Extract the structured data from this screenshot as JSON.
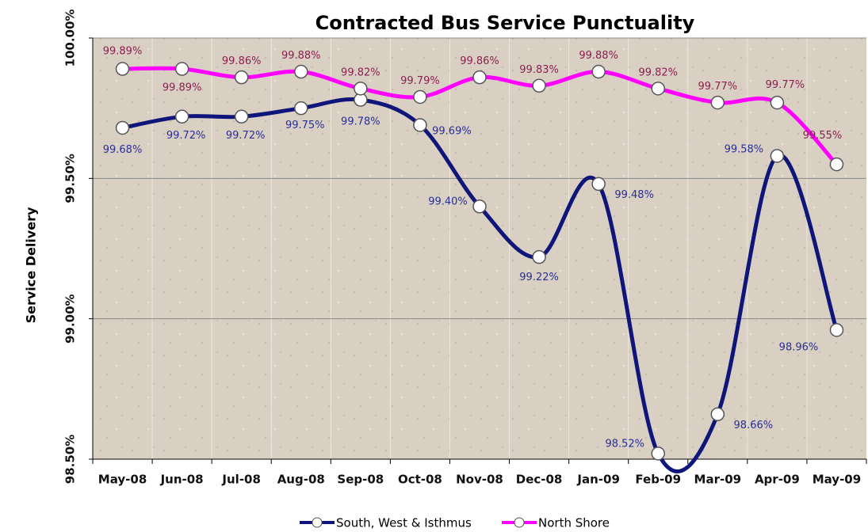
{
  "chart_data": {
    "type": "line",
    "title": "Contracted Bus Service Punctuality",
    "y_label": "Service Delivery",
    "categories": [
      "May-08",
      "Jun-08",
      "Jul-08",
      "Aug-08",
      "Sep-08",
      "Oct-08",
      "Nov-08",
      "Dec-08",
      "Jan-09",
      "Feb-09",
      "Mar-09",
      "Apr-09",
      "May-09"
    ],
    "series": [
      {
        "name": "South, West & Isthmus",
        "color": "#10157a",
        "values": [
          99.68,
          99.72,
          99.72,
          99.75,
          99.78,
          99.69,
          99.4,
          99.22,
          99.48,
          98.52,
          98.66,
          99.58,
          98.96
        ],
        "value_labels": [
          "99.68%",
          "99.72%",
          "99.72%",
          "99.75%",
          "99.78%",
          "99.69%",
          "99.40%",
          "99.22%",
          "99.48%",
          "98.52%",
          "98.66%",
          "99.58%",
          "98.96%"
        ]
      },
      {
        "name": "North Shore",
        "color": "#ff00ff",
        "values": [
          99.89,
          99.89,
          99.86,
          99.88,
          99.82,
          99.79,
          99.86,
          99.83,
          99.88,
          99.82,
          99.77,
          99.77,
          99.55
        ],
        "value_labels": [
          "99.89%",
          "99.89%",
          "99.86%",
          "99.88%",
          "99.82%",
          "99.79%",
          "99.86%",
          "99.83%",
          "99.88%",
          "99.82%",
          "99.77%",
          "99.77%",
          "99.55%"
        ]
      }
    ],
    "ylim": [
      98.5,
      100.0
    ],
    "yticks": [
      {
        "value": 98.5,
        "label": "98.50%"
      },
      {
        "value": 99.0,
        "label": "99.00%"
      },
      {
        "value": 99.5,
        "label": "99.50%"
      },
      {
        "value": 100.0,
        "label": "100.00%"
      }
    ],
    "grid": true,
    "legend": "bottom"
  }
}
